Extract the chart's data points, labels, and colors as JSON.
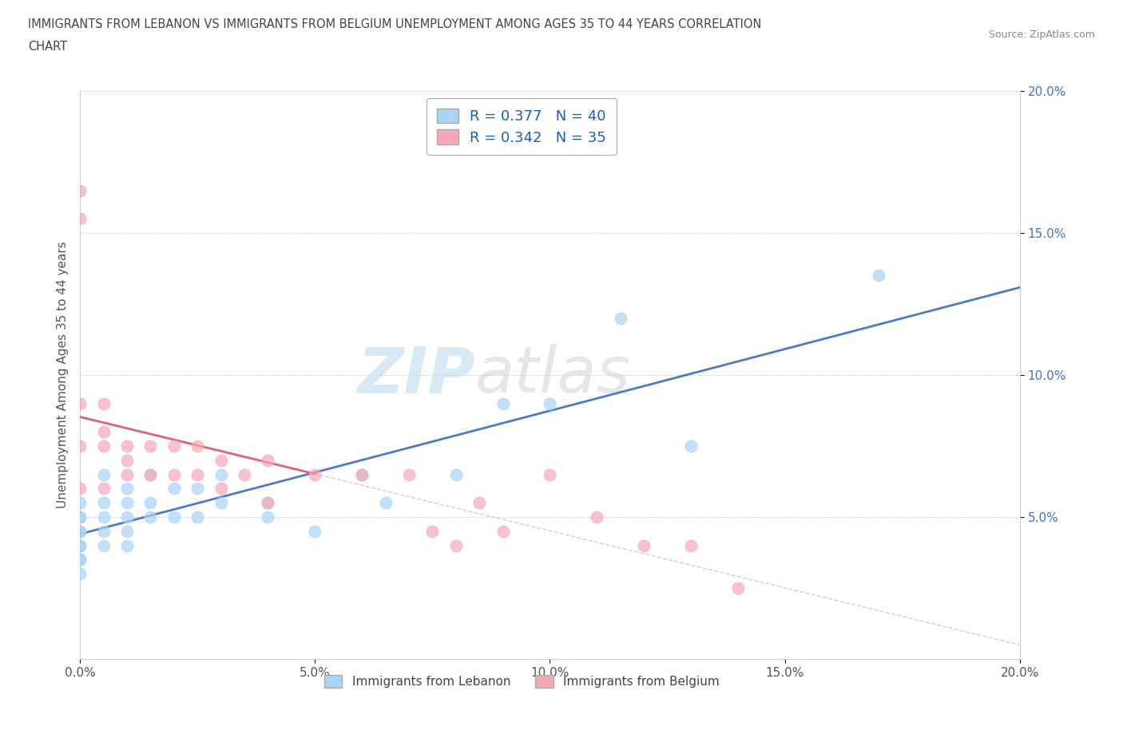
{
  "title_line1": "IMMIGRANTS FROM LEBANON VS IMMIGRANTS FROM BELGIUM UNEMPLOYMENT AMONG AGES 35 TO 44 YEARS CORRELATION",
  "title_line2": "CHART",
  "source_text": "Source: ZipAtlas.com",
  "ylabel": "Unemployment Among Ages 35 to 44 years",
  "xlim": [
    0.0,
    0.2
  ],
  "ylim": [
    0.0,
    0.2
  ],
  "xtick_vals": [
    0.0,
    0.05,
    0.1,
    0.15,
    0.2
  ],
  "xtick_labels": [
    "0.0%",
    "5.0%",
    "10.0%",
    "15.0%",
    "20.0%"
  ],
  "ytick_vals": [
    0.05,
    0.1,
    0.15,
    0.2
  ],
  "ytick_labels": [
    "5.0%",
    "10.0%",
    "15.0%",
    "20.0%"
  ],
  "color_lebanon": "#a8d4f5",
  "color_belgium": "#f5a8b8",
  "line_color_lebanon": "#3a6bc4",
  "line_color_belgium": "#e05070",
  "R_lebanon": 0.377,
  "N_lebanon": 40,
  "R_belgium": 0.342,
  "N_belgium": 35,
  "watermark_zip": "ZIP",
  "watermark_atlas": "atlas",
  "lebanon_x": [
    0.0,
    0.0,
    0.0,
    0.0,
    0.0,
    0.0,
    0.0,
    0.0,
    0.0,
    0.0,
    0.005,
    0.005,
    0.005,
    0.005,
    0.005,
    0.01,
    0.01,
    0.01,
    0.01,
    0.01,
    0.015,
    0.015,
    0.015,
    0.02,
    0.02,
    0.025,
    0.025,
    0.03,
    0.03,
    0.04,
    0.04,
    0.05,
    0.06,
    0.065,
    0.08,
    0.09,
    0.1,
    0.115,
    0.13,
    0.17
  ],
  "lebanon_y": [
    0.055,
    0.05,
    0.05,
    0.045,
    0.045,
    0.04,
    0.04,
    0.035,
    0.035,
    0.03,
    0.065,
    0.055,
    0.05,
    0.045,
    0.04,
    0.06,
    0.055,
    0.05,
    0.045,
    0.04,
    0.065,
    0.055,
    0.05,
    0.06,
    0.05,
    0.06,
    0.05,
    0.065,
    0.055,
    0.055,
    0.05,
    0.045,
    0.065,
    0.055,
    0.065,
    0.09,
    0.09,
    0.12,
    0.075,
    0.135
  ],
  "belgium_x": [
    0.0,
    0.0,
    0.0,
    0.0,
    0.0,
    0.005,
    0.005,
    0.005,
    0.005,
    0.01,
    0.01,
    0.01,
    0.015,
    0.015,
    0.02,
    0.02,
    0.025,
    0.025,
    0.03,
    0.03,
    0.035,
    0.04,
    0.04,
    0.05,
    0.06,
    0.07,
    0.075,
    0.08,
    0.085,
    0.09,
    0.1,
    0.11,
    0.12,
    0.13,
    0.14
  ],
  "belgium_y": [
    0.165,
    0.155,
    0.09,
    0.075,
    0.06,
    0.09,
    0.08,
    0.075,
    0.06,
    0.075,
    0.07,
    0.065,
    0.075,
    0.065,
    0.075,
    0.065,
    0.075,
    0.065,
    0.07,
    0.06,
    0.065,
    0.07,
    0.055,
    0.065,
    0.065,
    0.065,
    0.045,
    0.04,
    0.055,
    0.045,
    0.065,
    0.05,
    0.04,
    0.04,
    0.025
  ]
}
